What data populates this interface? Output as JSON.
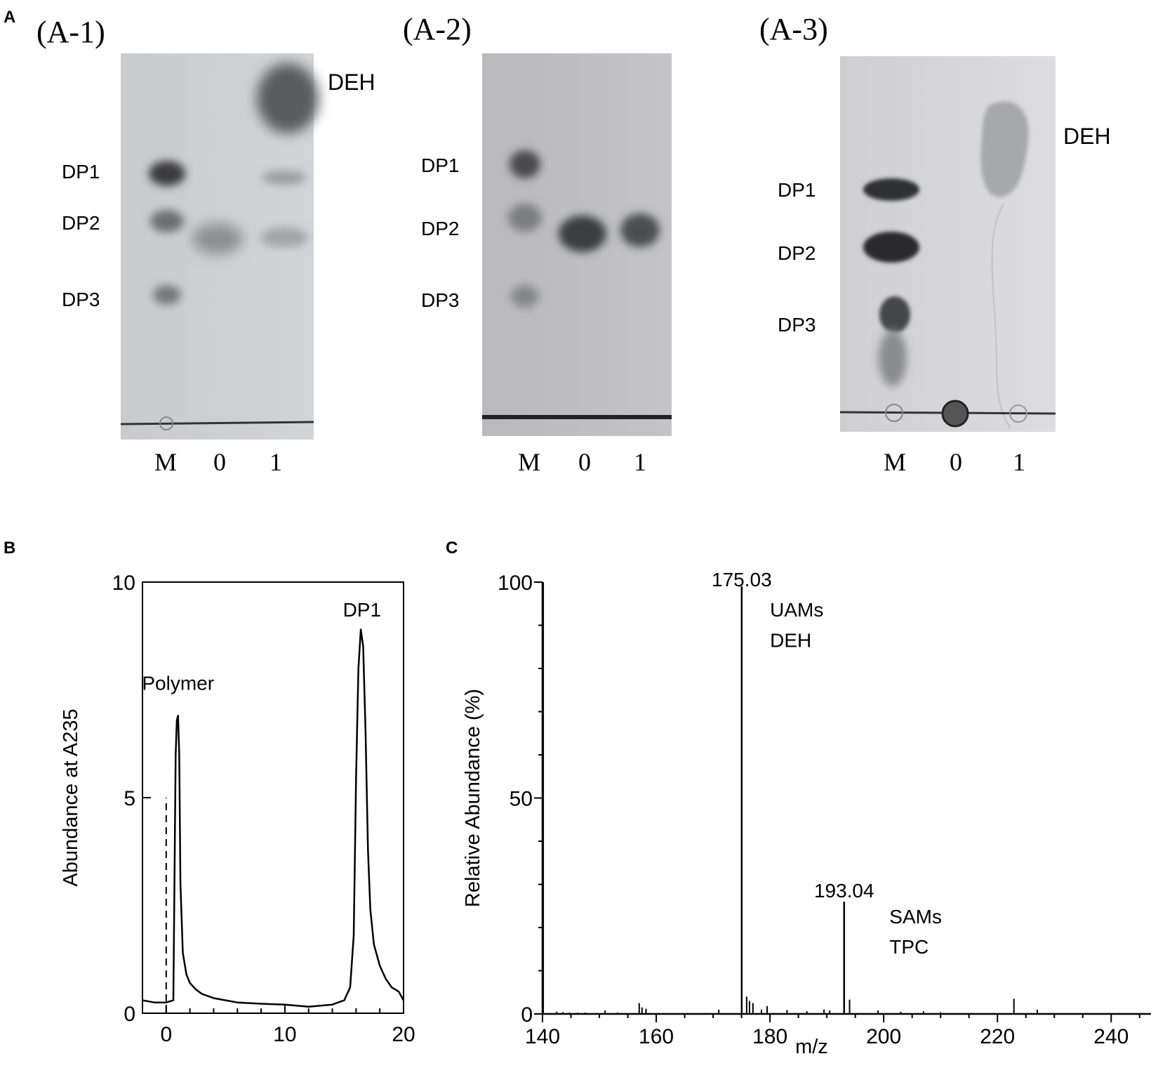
{
  "panelA": {
    "letter": "A",
    "plates": [
      {
        "title": "(A-1)",
        "lanes": [
          "M",
          "0",
          "1"
        ],
        "left_labels": [
          "DP1",
          "DP2",
          "DP3"
        ],
        "right_label": "DEH"
      },
      {
        "title": "(A-2)",
        "lanes": [
          "M",
          "0",
          "1"
        ],
        "left_labels": [
          "DP1",
          "DP2",
          "DP3"
        ],
        "right_label": ""
      },
      {
        "title": "(A-3)",
        "lanes": [
          "M",
          "0",
          "1"
        ],
        "left_labels": [
          "DP1",
          "DP2",
          "DP3"
        ],
        "right_label": "DEH"
      }
    ]
  },
  "chart_data": [
    {
      "panel": "B",
      "type": "line",
      "xlabel": "",
      "ylabel": "Abundance at A235",
      "xlim": [
        -2,
        20
      ],
      "ylim": [
        0,
        10
      ],
      "xticks": [
        0,
        10,
        20
      ],
      "yticks": [
        0,
        5,
        10
      ],
      "annotations": [
        {
          "text": "Polymer",
          "x": 1.0,
          "y": 7.5
        },
        {
          "text": "DP1",
          "x": 16.5,
          "y": 9.2
        }
      ],
      "marker_line": {
        "x": 0,
        "y_top": 5,
        "style": "dashed"
      },
      "series": [
        {
          "x": [
            -2,
            -1,
            0,
            0.6,
            0.8,
            0.9,
            1.0,
            1.1,
            1.2,
            1.4,
            1.7,
            2.0,
            2.5,
            3,
            4,
            5,
            6,
            8,
            10,
            12,
            14,
            15,
            15.5,
            15.8,
            16.0,
            16.2,
            16.4,
            16.6,
            16.8,
            17.0,
            17.2,
            17.5,
            18,
            18.5,
            19,
            19.3,
            19.6,
            20
          ],
          "y": [
            0.3,
            0.25,
            0.25,
            0.3,
            6.0,
            6.8,
            6.9,
            6.0,
            3.0,
            1.4,
            0.9,
            0.7,
            0.55,
            0.45,
            0.35,
            0.3,
            0.25,
            0.22,
            0.2,
            0.15,
            0.2,
            0.3,
            0.6,
            1.8,
            5.5,
            8.0,
            8.9,
            8.5,
            6.5,
            3.8,
            2.4,
            1.6,
            1.1,
            0.8,
            0.6,
            0.55,
            0.5,
            0.3
          ]
        }
      ]
    },
    {
      "panel": "C",
      "type": "bar",
      "xlabel": "m/z",
      "ylabel": "Relative Abundance (%)",
      "xlim": [
        140,
        247
      ],
      "ylim": [
        0,
        100
      ],
      "xticks": [
        140,
        160,
        180,
        200,
        220,
        240
      ],
      "yticks": [
        0,
        50,
        100
      ],
      "annotations": [
        {
          "text": "175.03",
          "x": 175.03,
          "y": 99
        },
        {
          "text": "UAMs",
          "x": 180,
          "y": 92
        },
        {
          "text": "DEH",
          "x": 180,
          "y": 85
        },
        {
          "text": "193.04",
          "x": 193.04,
          "y": 27
        },
        {
          "text": "SAMs",
          "x": 201,
          "y": 21
        },
        {
          "text": "TPC",
          "x": 201,
          "y": 14
        }
      ],
      "peaks": {
        "mz": [
          140.1,
          142.5,
          143.6,
          144.8,
          146.2,
          147.5,
          151.0,
          153.2,
          157.0,
          157.5,
          158.2,
          171.0,
          175.03,
          175.9,
          176.4,
          177.0,
          178.5,
          179.5,
          183.0,
          186.5,
          189.5,
          190.5,
          193.04,
          194.0,
          199.0,
          203.0,
          207.0,
          210.0,
          222.9,
          227.0
        ],
        "intensity": [
          100,
          0.5,
          0.4,
          0.3,
          0.3,
          0.3,
          0.8,
          0.3,
          2.5,
          1.5,
          1.2,
          1.0,
          99,
          4.0,
          3.0,
          2.5,
          1.0,
          1.8,
          0.9,
          0.6,
          1.0,
          0.8,
          26,
          3.3,
          0.8,
          0.5,
          0.6,
          0.4,
          3.5,
          1.0
        ]
      }
    }
  ]
}
